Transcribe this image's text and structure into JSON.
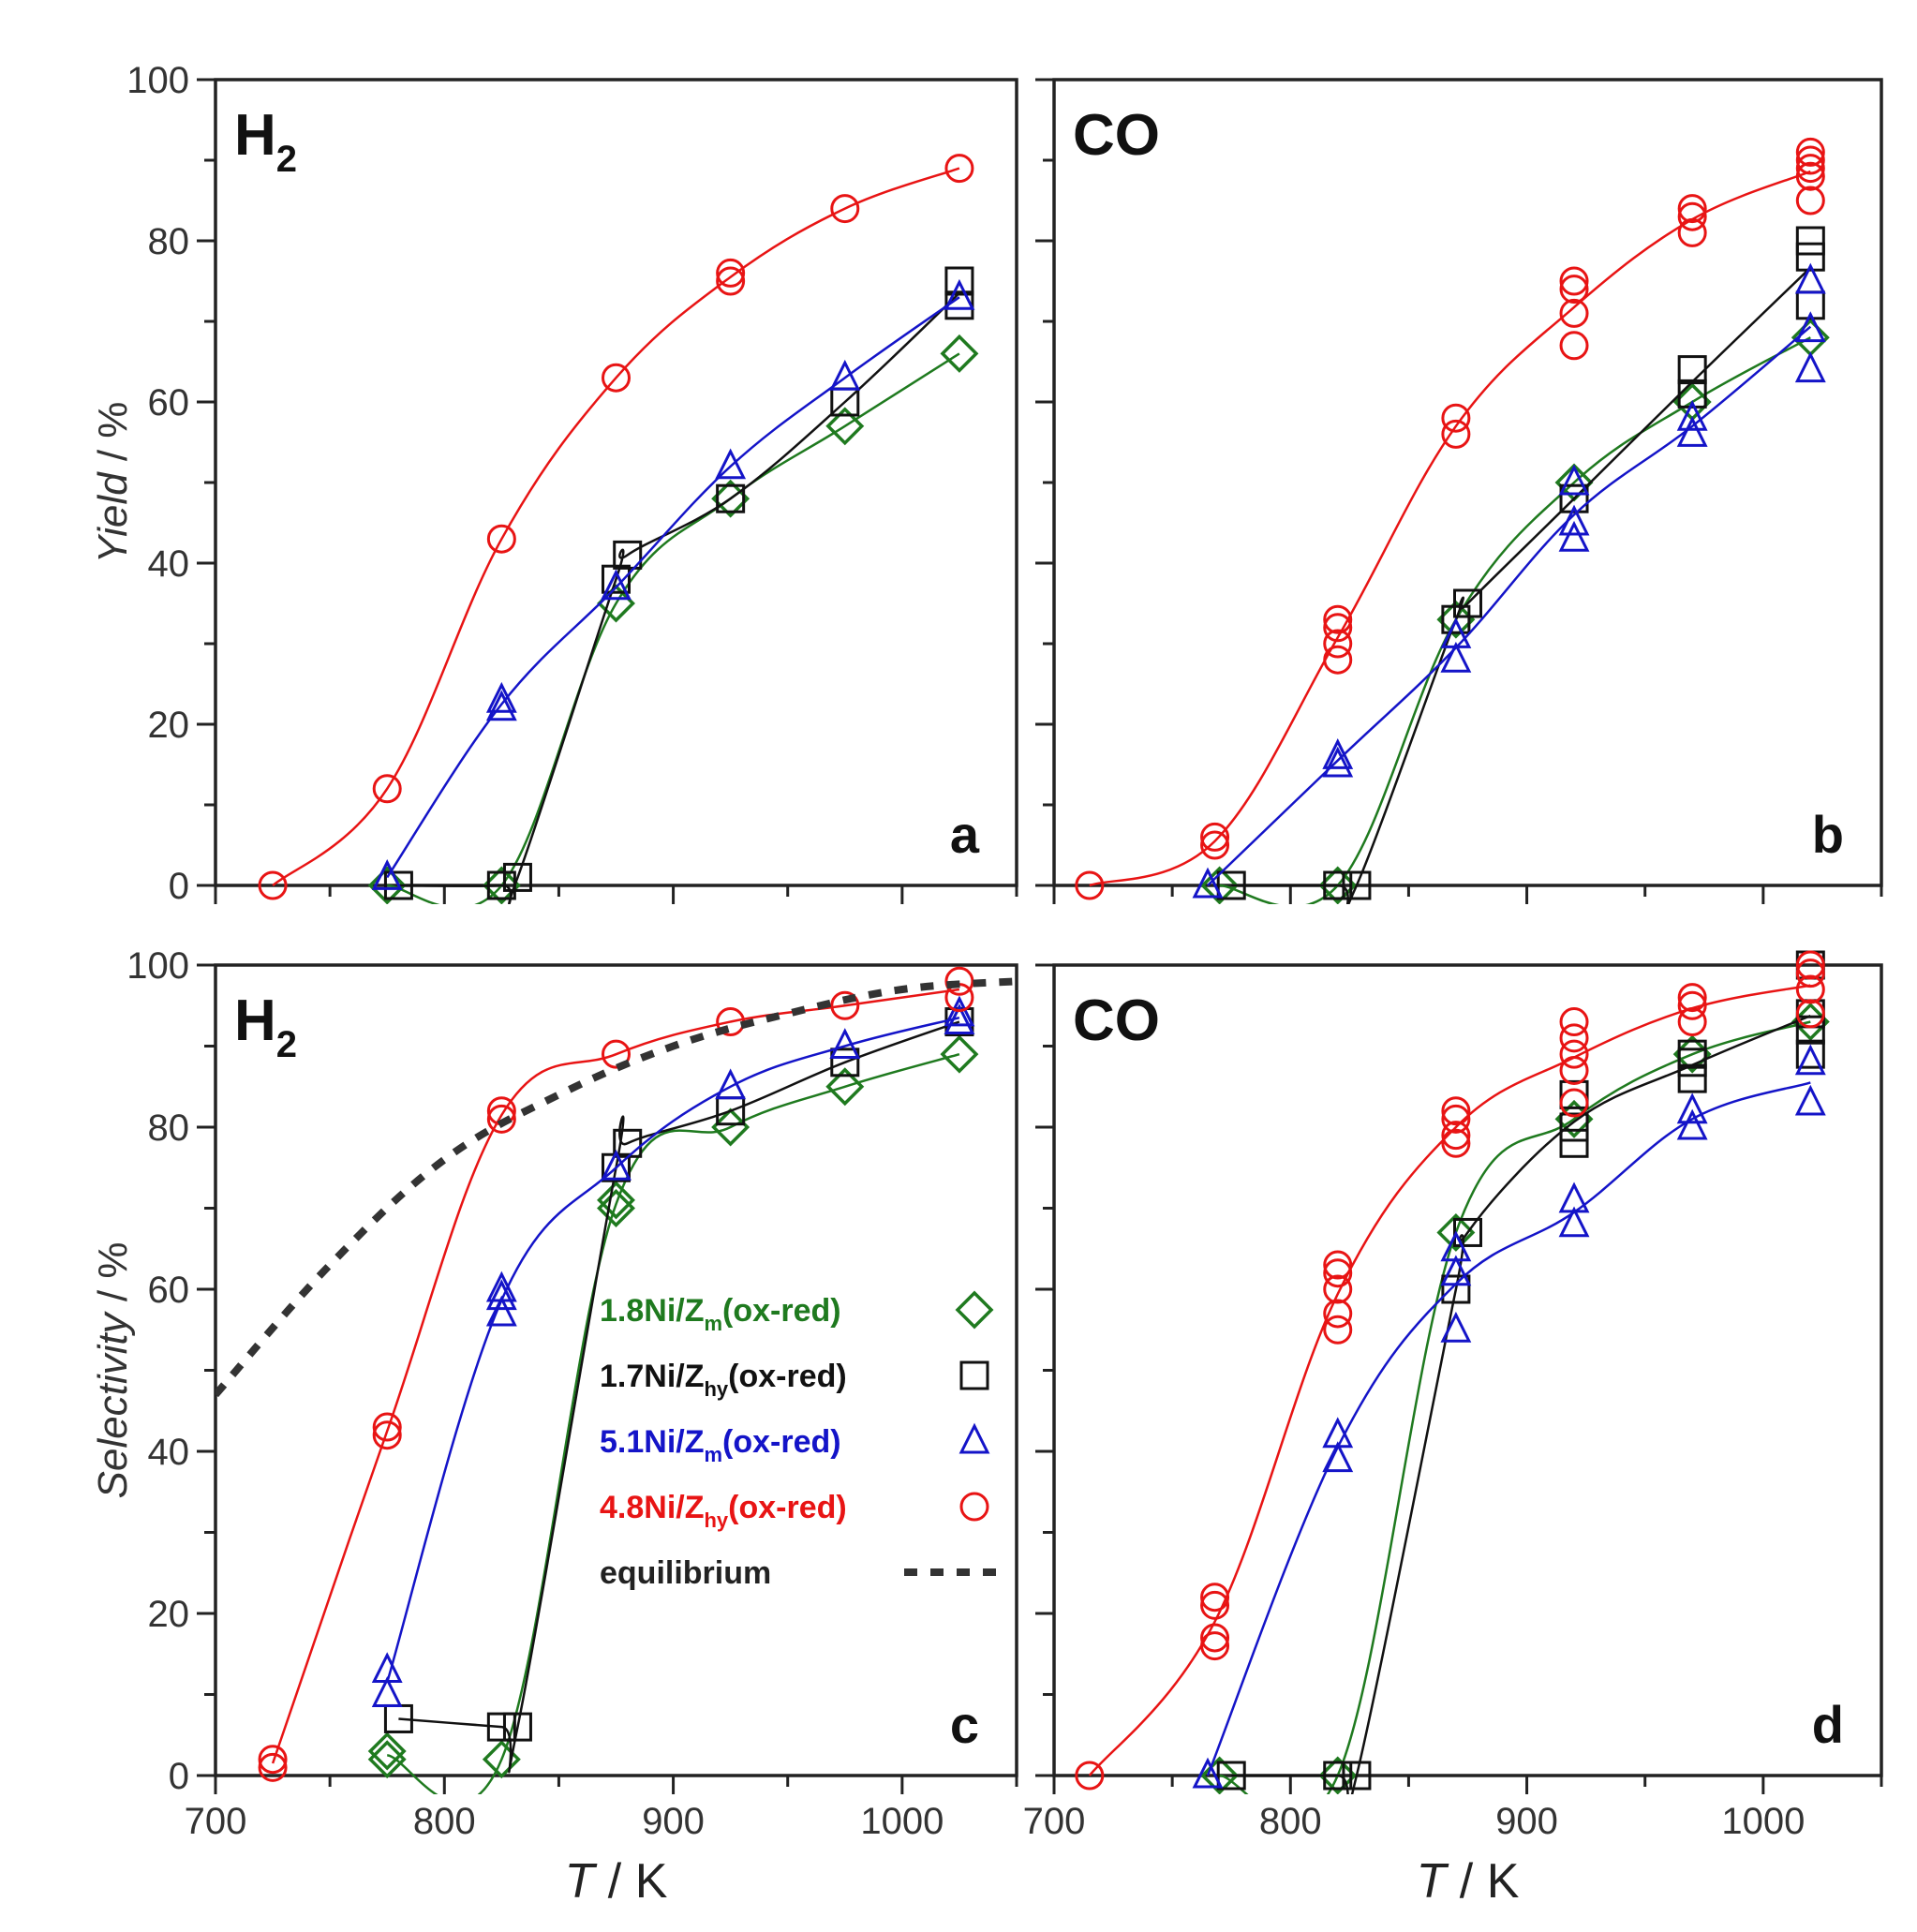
{
  "figure": {
    "x_label_italic": "T",
    "x_label_rest": " / K"
  },
  "series_styles": [
    {
      "key": "ni18",
      "color": "#1f7a1f",
      "marker": "diamond"
    },
    {
      "key": "ni17",
      "color": "#111111",
      "marker": "square"
    },
    {
      "key": "ni51",
      "color": "#1414c8",
      "marker": "triangle"
    },
    {
      "key": "ni48",
      "color": "#e81414",
      "marker": "circle"
    },
    {
      "key": "eq",
      "color": "#333333",
      "marker": "dashed-line"
    }
  ],
  "legend": [
    {
      "key": "ni18",
      "prefix": "1.8",
      "mid": "Ni/Z",
      "sub": "m",
      "suffix": "(ox-red)"
    },
    {
      "key": "ni17",
      "prefix": "1.7",
      "mid": "Ni/Z",
      "sub": "hy",
      "suffix": "(ox-red)"
    },
    {
      "key": "ni51",
      "prefix": "5.1",
      "mid": "Ni/Z",
      "sub": "m",
      "suffix": "(ox-red)"
    },
    {
      "key": "ni48",
      "prefix": "4.8",
      "mid": "Ni/Z",
      "sub": "hy",
      "suffix": "(ox-red)"
    },
    {
      "key": "eq",
      "prefix": "",
      "mid": "equilibrium",
      "sub": "",
      "suffix": ""
    }
  ],
  "chart_data": [
    {
      "panel": "a",
      "type": "line",
      "title": "H",
      "title_sub": "2",
      "xlabel": "",
      "ylabel": "Yield / %",
      "ylabel_italic": "Yield",
      "ylabel_rest": " / %",
      "xlim": [
        700,
        1050
      ],
      "ylim": [
        0,
        100
      ],
      "yticks": [
        0,
        20,
        40,
        60,
        80,
        100
      ],
      "xticks": [],
      "series": [
        {
          "key": "ni18",
          "points": [
            [
              775,
              0
            ],
            [
              825,
              0
            ],
            [
              875,
              35
            ],
            [
              925,
              48
            ],
            [
              975,
              57
            ],
            [
              1025,
              66
            ]
          ]
        },
        {
          "key": "ni17",
          "points": [
            [
              780,
              0
            ],
            [
              825,
              0
            ],
            [
              832,
              1
            ],
            [
              875,
              38
            ],
            [
              880,
              41
            ],
            [
              925,
              48
            ],
            [
              975,
              60
            ],
            [
              1025,
              72
            ],
            [
              1025,
              75
            ]
          ]
        },
        {
          "key": "ni51",
          "points": [
            [
              775,
              1
            ],
            [
              825,
              22
            ],
            [
              825,
              23
            ],
            [
              875,
              37
            ],
            [
              925,
              52
            ],
            [
              975,
              63
            ],
            [
              1025,
              73
            ]
          ]
        },
        {
          "key": "ni48",
          "points": [
            [
              725,
              0
            ],
            [
              775,
              12
            ],
            [
              825,
              43
            ],
            [
              875,
              63
            ],
            [
              925,
              75
            ],
            [
              925,
              76
            ],
            [
              975,
              84
            ],
            [
              1025,
              89
            ]
          ]
        }
      ]
    },
    {
      "panel": "b",
      "type": "line",
      "title": "CO",
      "title_sub": "",
      "xlabel": "",
      "ylabel": "",
      "xlim": [
        700,
        1050
      ],
      "ylim": [
        0,
        100
      ],
      "yticks": [],
      "xticks": [],
      "series": [
        {
          "key": "ni18",
          "points": [
            [
              770,
              0
            ],
            [
              820,
              0
            ],
            [
              870,
              33
            ],
            [
              920,
              50
            ],
            [
              970,
              60
            ],
            [
              1020,
              68
            ]
          ]
        },
        {
          "key": "ni17",
          "points": [
            [
              775,
              0
            ],
            [
              820,
              0
            ],
            [
              828,
              0
            ],
            [
              870,
              33
            ],
            [
              875,
              35
            ],
            [
              920,
              48
            ],
            [
              970,
              61
            ],
            [
              970,
              64
            ],
            [
              1020,
              72
            ],
            [
              1020,
              78
            ],
            [
              1020,
              80
            ]
          ]
        },
        {
          "key": "ni51",
          "points": [
            [
              765,
              0
            ],
            [
              820,
              15
            ],
            [
              820,
              16
            ],
            [
              870,
              28
            ],
            [
              870,
              31
            ],
            [
              920,
              43
            ],
            [
              920,
              45
            ],
            [
              920,
              50
            ],
            [
              970,
              56
            ],
            [
              970,
              58
            ],
            [
              1020,
              64
            ],
            [
              1020,
              69
            ],
            [
              1020,
              75
            ]
          ]
        },
        {
          "key": "ni48",
          "points": [
            [
              715,
              0
            ],
            [
              768,
              5
            ],
            [
              768,
              6
            ],
            [
              820,
              28
            ],
            [
              820,
              30
            ],
            [
              820,
              32
            ],
            [
              820,
              33
            ],
            [
              870,
              56
            ],
            [
              870,
              58
            ],
            [
              920,
              67
            ],
            [
              920,
              71
            ],
            [
              920,
              74
            ],
            [
              920,
              75
            ],
            [
              970,
              81
            ],
            [
              970,
              83
            ],
            [
              970,
              84
            ],
            [
              1020,
              85
            ],
            [
              1020,
              88
            ],
            [
              1020,
              89
            ],
            [
              1020,
              90
            ],
            [
              1020,
              91
            ]
          ]
        }
      ]
    },
    {
      "panel": "c",
      "type": "line",
      "title": "H",
      "title_sub": "2",
      "xlabel": "T / K",
      "ylabel": "Selectivity / %",
      "ylabel_italic": "Selectivity",
      "ylabel_rest": " / %",
      "xlim": [
        700,
        1050
      ],
      "ylim": [
        0,
        100
      ],
      "yticks": [
        0,
        20,
        40,
        60,
        80,
        100
      ],
      "xticks": [
        700,
        800,
        900,
        1000
      ],
      "series": [
        {
          "key": "ni18",
          "points": [
            [
              775,
              2
            ],
            [
              775,
              3
            ],
            [
              825,
              2
            ],
            [
              875,
              70
            ],
            [
              875,
              71
            ],
            [
              925,
              80
            ],
            [
              975,
              85
            ],
            [
              1025,
              89
            ]
          ]
        },
        {
          "key": "ni17",
          "points": [
            [
              780,
              7
            ],
            [
              825,
              6
            ],
            [
              832,
              6
            ],
            [
              875,
              75
            ],
            [
              880,
              78
            ],
            [
              925,
              82
            ],
            [
              975,
              88
            ],
            [
              1025,
              93
            ]
          ]
        },
        {
          "key": "ni51",
          "points": [
            [
              775,
              10
            ],
            [
              775,
              13
            ],
            [
              825,
              57
            ],
            [
              825,
              59
            ],
            [
              825,
              60
            ],
            [
              875,
              75
            ],
            [
              925,
              85
            ],
            [
              975,
              90
            ],
            [
              1025,
              93
            ],
            [
              1025,
              94
            ]
          ]
        },
        {
          "key": "ni48",
          "points": [
            [
              725,
              1
            ],
            [
              725,
              2
            ],
            [
              775,
              42
            ],
            [
              775,
              43
            ],
            [
              825,
              81
            ],
            [
              825,
              82
            ],
            [
              875,
              89
            ],
            [
              925,
              93
            ],
            [
              975,
              95
            ],
            [
              1025,
              96
            ],
            [
              1025,
              98
            ]
          ]
        },
        {
          "key": "eq",
          "points": [
            [
              700,
              47
            ],
            [
              750,
              63
            ],
            [
              800,
              76
            ],
            [
              850,
              84
            ],
            [
              900,
              90
            ],
            [
              950,
              94
            ],
            [
              1000,
              97
            ],
            [
              1050,
              98
            ]
          ]
        }
      ]
    },
    {
      "panel": "d",
      "type": "line",
      "title": "CO",
      "title_sub": "",
      "xlabel": "T / K",
      "ylabel": "",
      "xlim": [
        700,
        1050
      ],
      "ylim": [
        0,
        100
      ],
      "yticks": [],
      "xticks": [
        700,
        800,
        900,
        1000
      ],
      "series": [
        {
          "key": "ni18",
          "points": [
            [
              770,
              0
            ],
            [
              820,
              0
            ],
            [
              870,
              67
            ],
            [
              920,
              81
            ],
            [
              970,
              89
            ],
            [
              1020,
              93
            ]
          ]
        },
        {
          "key": "ni17",
          "points": [
            [
              775,
              0
            ],
            [
              820,
              0
            ],
            [
              828,
              0
            ],
            [
              870,
              60
            ],
            [
              875,
              67
            ],
            [
              920,
              78
            ],
            [
              920,
              80
            ],
            [
              920,
              84
            ],
            [
              970,
              86
            ],
            [
              970,
              88
            ],
            [
              970,
              89
            ],
            [
              1020,
              89
            ],
            [
              1020,
              92
            ],
            [
              1020,
              94
            ],
            [
              1020,
              100
            ]
          ]
        },
        {
          "key": "ni51",
          "points": [
            [
              765,
              0
            ],
            [
              820,
              39
            ],
            [
              820,
              42
            ],
            [
              870,
              55
            ],
            [
              870,
              62
            ],
            [
              870,
              65
            ],
            [
              920,
              68
            ],
            [
              920,
              71
            ],
            [
              970,
              80
            ],
            [
              970,
              82
            ],
            [
              1020,
              83
            ],
            [
              1020,
              88
            ]
          ]
        },
        {
          "key": "ni48",
          "points": [
            [
              715,
              0
            ],
            [
              768,
              16
            ],
            [
              768,
              17
            ],
            [
              768,
              21
            ],
            [
              768,
              22
            ],
            [
              820,
              55
            ],
            [
              820,
              57
            ],
            [
              820,
              60
            ],
            [
              820,
              62
            ],
            [
              820,
              63
            ],
            [
              870,
              78
            ],
            [
              870,
              79
            ],
            [
              870,
              81
            ],
            [
              870,
              82
            ],
            [
              920,
              83
            ],
            [
              920,
              87
            ],
            [
              920,
              89
            ],
            [
              920,
              91
            ],
            [
              920,
              93
            ],
            [
              970,
              93
            ],
            [
              970,
              95
            ],
            [
              970,
              96
            ],
            [
              1020,
              94
            ],
            [
              1020,
              97
            ],
            [
              1020,
              99
            ],
            [
              1020,
              100
            ]
          ]
        }
      ]
    }
  ]
}
